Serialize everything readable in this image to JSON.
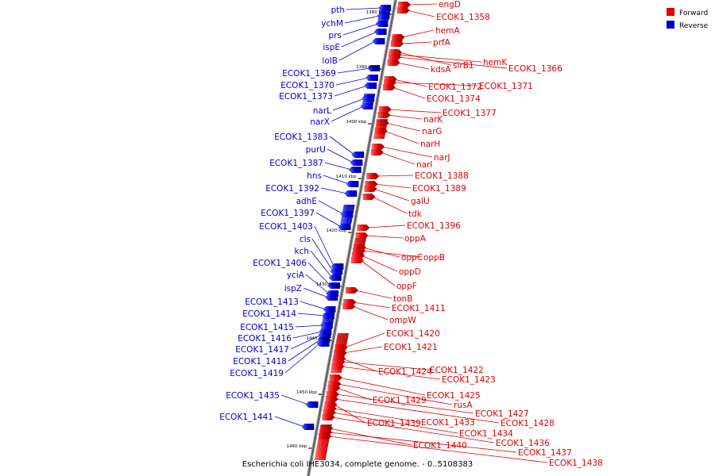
{
  "caption": "Escherichia coli IHE3034, complete genome. - 0..5108383",
  "legend": [
    {
      "label": "Forward",
      "color": "#e00000"
    },
    {
      "label": "Reverse",
      "color": "#0000cc"
    }
  ],
  "ticks": [
    "1380 kbp",
    "1390 kbp",
    "1400 kbp",
    "1410 kbp",
    "1420 kbp",
    "1430 kbp",
    "1440 kbp",
    "1450 kbp",
    "1460 kbp"
  ],
  "forward_genes": [
    "engD",
    "ECOK1_1358",
    "hemA",
    "prfA",
    "sirB1",
    "hemK",
    "ECOK1_1366",
    "kdsA",
    "ECOK1_1372",
    "ECOK1_1371",
    "ECOK1_1374",
    "ECOK1_1377",
    "narK",
    "narG",
    "narH",
    "narJ",
    "narI",
    "ECOK1_1388",
    "ECOK1_1389",
    "galU",
    "tdk",
    "ECOK1_1396",
    "oppA",
    "oppC",
    "oppB",
    "oppD",
    "oppF",
    "tonB",
    "ECOK1_1411",
    "ompW",
    "ECOK1_1420",
    "ECOK1_1421",
    "ECOK1_1424",
    "ECOK1_1422",
    "ECOK1_1423",
    "ECOK1_1425",
    "rusA",
    "ECOK1_1429",
    "ECOK1_1427",
    "ECOK1_1428",
    "ECOK1_1439",
    "ECOK1_1433",
    "ECOK1_1434",
    "ECOK1_1436",
    "ECOK1_1440",
    "ECOK1_1437",
    "ECOK1_1438"
  ],
  "reverse_genes": [
    "pth",
    "ychM",
    "prs",
    "ispE",
    "lolB",
    "ECOK1_1369",
    "ECOK1_1370",
    "ECOK1_1373",
    "narL",
    "narX",
    "ECOK1_1383",
    "purU",
    "ECOK1_1387",
    "hns",
    "ECOK1_1392",
    "adhE",
    "ECOK1_1397",
    "ECOK1_1403",
    "cls",
    "kch",
    "ECOK1_1406",
    "yciA",
    "ispZ",
    "ECOK1_1413",
    "ECOK1_1414",
    "ECOK1_1415",
    "ECOK1_1416",
    "ECOK1_1417",
    "ECOK1_1418",
    "ECOK1_1419",
    "ECOK1_1435",
    "ECOK1_1441"
  ],
  "colors": {
    "forward": "#e00000",
    "reverse": "#0000cc",
    "backbone": "#777777"
  }
}
